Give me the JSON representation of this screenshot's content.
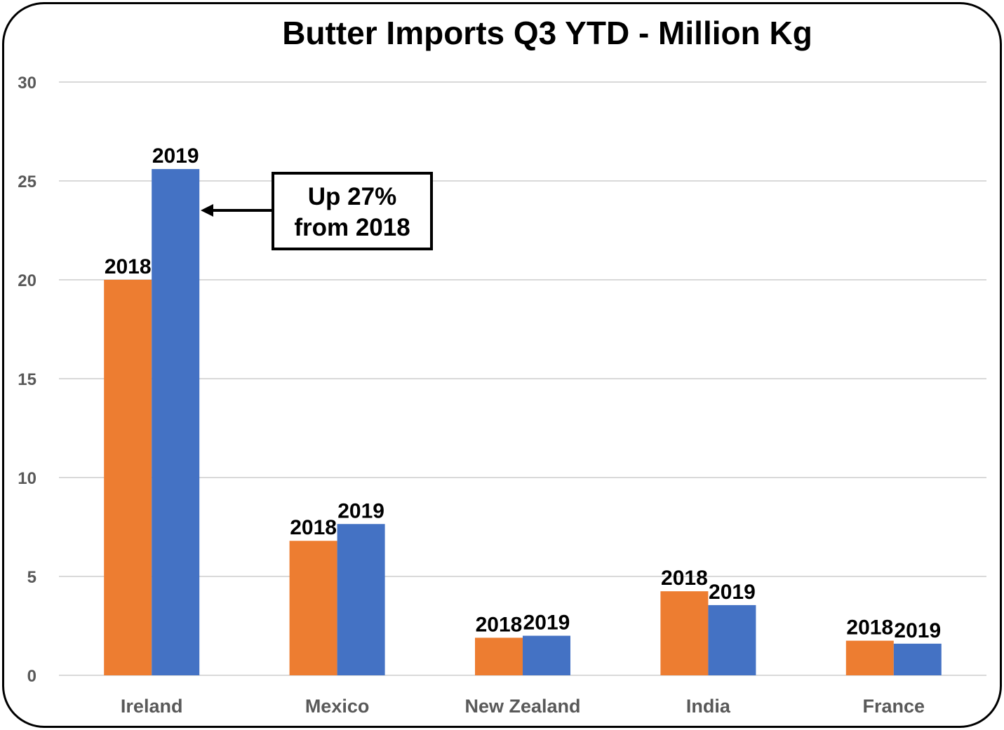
{
  "chart_data": {
    "type": "bar",
    "title": "Butter Imports Q3 YTD - Million Kg",
    "xlabel": "",
    "ylabel": "",
    "ylim": [
      0,
      30
    ],
    "yticks": [
      0,
      5,
      10,
      15,
      20,
      25,
      30
    ],
    "grid": true,
    "categories": [
      "Ireland",
      "Mexico",
      "New Zealand",
      "India",
      "France"
    ],
    "series": [
      {
        "name": "2018",
        "color": "#ED7D31",
        "values": [
          20.0,
          6.8,
          1.9,
          4.25,
          1.75
        ]
      },
      {
        "name": "2019",
        "color": "#4472C4",
        "values": [
          25.6,
          7.65,
          2.0,
          3.55,
          1.6
        ]
      }
    ],
    "annotation": {
      "lines": [
        "Up 27%",
        "from 2018"
      ],
      "points_to": {
        "category": "Ireland",
        "series": "2019"
      }
    }
  }
}
